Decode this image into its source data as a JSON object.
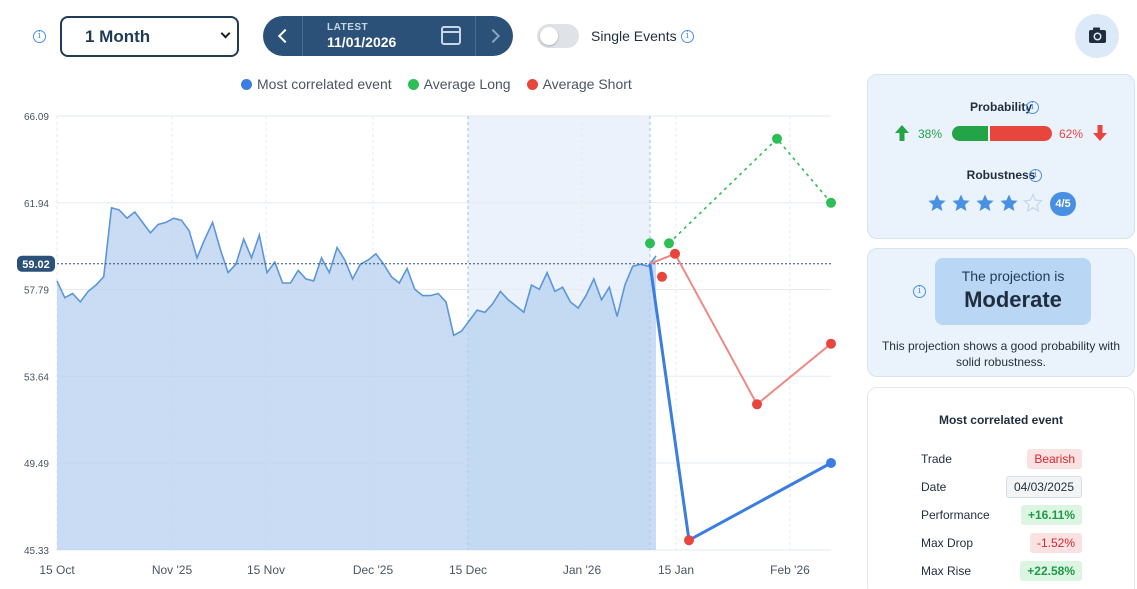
{
  "controls": {
    "period_value": "1 Month",
    "nav_latest_label": "LATEST",
    "nav_date": "11/01/2026",
    "toggle_label": "Single Events"
  },
  "legend": [
    {
      "label": "Most correlated event",
      "color": "#3b7de1"
    },
    {
      "label": "Average Long",
      "color": "#2dbf55"
    },
    {
      "label": "Average Short",
      "color": "#e8453c"
    }
  ],
  "chart_data": {
    "type": "line",
    "y_ticks": [
      "66.09",
      "61.94",
      "57.79",
      "53.64",
      "49.49",
      "45.33"
    ],
    "ylim": [
      45.33,
      66.09
    ],
    "current_value_label": "59.02",
    "current_value": 59.02,
    "x_ticks": [
      "15 Oct",
      "Nov '25",
      "15 Nov",
      "Dec '25",
      "15 Dec",
      "Jan '26",
      "15 Jan",
      "Feb '26"
    ],
    "grid": true,
    "legend_position": "top",
    "history": {
      "name": "",
      "values": [
        58.2,
        57.4,
        57.6,
        57.2,
        57.7,
        58.0,
        58.4,
        61.7,
        61.6,
        61.2,
        61.5,
        61.0,
        60.5,
        60.9,
        61.0,
        61.2,
        61.1,
        60.6,
        59.3,
        60.2,
        61.0,
        59.7,
        58.6,
        59.0,
        60.2,
        59.3,
        60.4,
        58.6,
        59.1,
        58.1,
        58.1,
        58.7,
        58.3,
        58.2,
        59.3,
        58.6,
        59.8,
        59.2,
        58.3,
        59.0,
        59.2,
        59.5,
        59.0,
        58.4,
        58.1,
        58.8,
        57.8,
        57.5,
        57.5,
        57.6,
        57.2,
        55.6,
        55.8,
        56.3,
        56.8,
        56.7,
        57.1,
        57.7,
        57.3,
        57.0,
        56.7,
        58.0,
        57.8,
        58.6,
        57.7,
        57.9,
        57.2,
        56.9,
        57.5,
        58.3,
        57.3,
        57.9,
        56.5,
        58.0,
        58.9,
        59.0,
        58.9,
        59.4
      ]
    },
    "highlight_region": [
      "15 Dec",
      "Jan '26"
    ],
    "projections": {
      "most_correlated": [
        {
          "x": "Jan '26",
          "y": 59.02
        },
        {
          "x": "15 Jan",
          "y": 45.8
        },
        {
          "x": "Feb '26",
          "y": 49.49
        }
      ],
      "average_long": [
        {
          "x": "Jan '26",
          "y": 60.0
        },
        {
          "x": "15 Jan",
          "y": 60.0
        },
        {
          "x": "Feb '26",
          "y": 65.0
        },
        {
          "x": "Feb '26",
          "y": 61.94
        }
      ],
      "average_short": [
        {
          "x": "Jan '26",
          "y": 58.4
        },
        {
          "x": "15 Jan",
          "y": 59.5
        },
        {
          "x": "Feb '26",
          "y": 52.3
        },
        {
          "x": "Feb '26",
          "y": 55.2
        }
      ]
    }
  },
  "probability": {
    "title": "Probability",
    "long_pct": "38%",
    "short_pct": "62%",
    "long_fraction": 0.38,
    "short_fraction": 0.62
  },
  "robustness": {
    "title": "Robustness",
    "rating": 4,
    "max": 5,
    "badge": "4/5"
  },
  "projection": {
    "line1": "The projection is",
    "line2": "Moderate",
    "description": "This projection shows a good probability with solid robustness."
  },
  "correlated_event": {
    "title": "Most correlated event",
    "rows": [
      {
        "key": "Trade",
        "value": "Bearish",
        "style": "red"
      },
      {
        "key": "Date",
        "value": "04/03/2025",
        "style": "gray"
      },
      {
        "key": "Performance",
        "value": "+16.11%",
        "style": "green"
      },
      {
        "key": "Max Drop",
        "value": "-1.52%",
        "style": "red"
      },
      {
        "key": "Max Rise",
        "value": "+22.58%",
        "style": "green"
      }
    ]
  }
}
